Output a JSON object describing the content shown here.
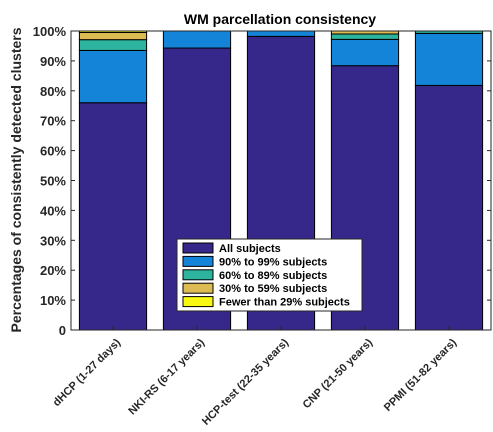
{
  "chart_data": {
    "type": "bar",
    "stacked": true,
    "title": "WM parcellation consistency",
    "xlabel": "",
    "ylabel": "Percentages of consistently detected clusters",
    "ylim": [
      0,
      100
    ],
    "yticks": [
      0,
      10,
      20,
      30,
      40,
      50,
      60,
      70,
      80,
      90,
      100
    ],
    "ytick_labels": [
      "0",
      "10%",
      "20%",
      "30%",
      "40%",
      "50%",
      "60%",
      "70%",
      "80%",
      "90%",
      "100%"
    ],
    "categories": [
      "dHCP (1-27 days)",
      "NKI-RS (6-17 years)",
      "HCP-test (22-35 years)",
      "CNP (21-50 years)",
      "PPMI (51-82 years)"
    ],
    "series": [
      {
        "name": "All subjects",
        "color": "#35288a",
        "values": [
          76,
          94.3,
          98.2,
          88.4,
          81.8
        ]
      },
      {
        "name": "90% to 99% subjects",
        "color": "#1484d8",
        "values": [
          17.5,
          5.7,
          1.8,
          8.8,
          17.4
        ]
      },
      {
        "name": "60% to 89% subjects",
        "color": "#2db49e",
        "values": [
          3.6,
          0,
          0,
          1.8,
          0.8
        ]
      },
      {
        "name": "30% to 59% subjects",
        "color": "#dcbc52",
        "values": [
          2.4,
          0,
          0,
          1.0,
          0
        ]
      },
      {
        "name": "Fewer than 29% subjects",
        "color": "#f8f812",
        "values": [
          0.5,
          0,
          0,
          0,
          0
        ]
      }
    ],
    "legend_position": "lower-center",
    "grid": false
  }
}
